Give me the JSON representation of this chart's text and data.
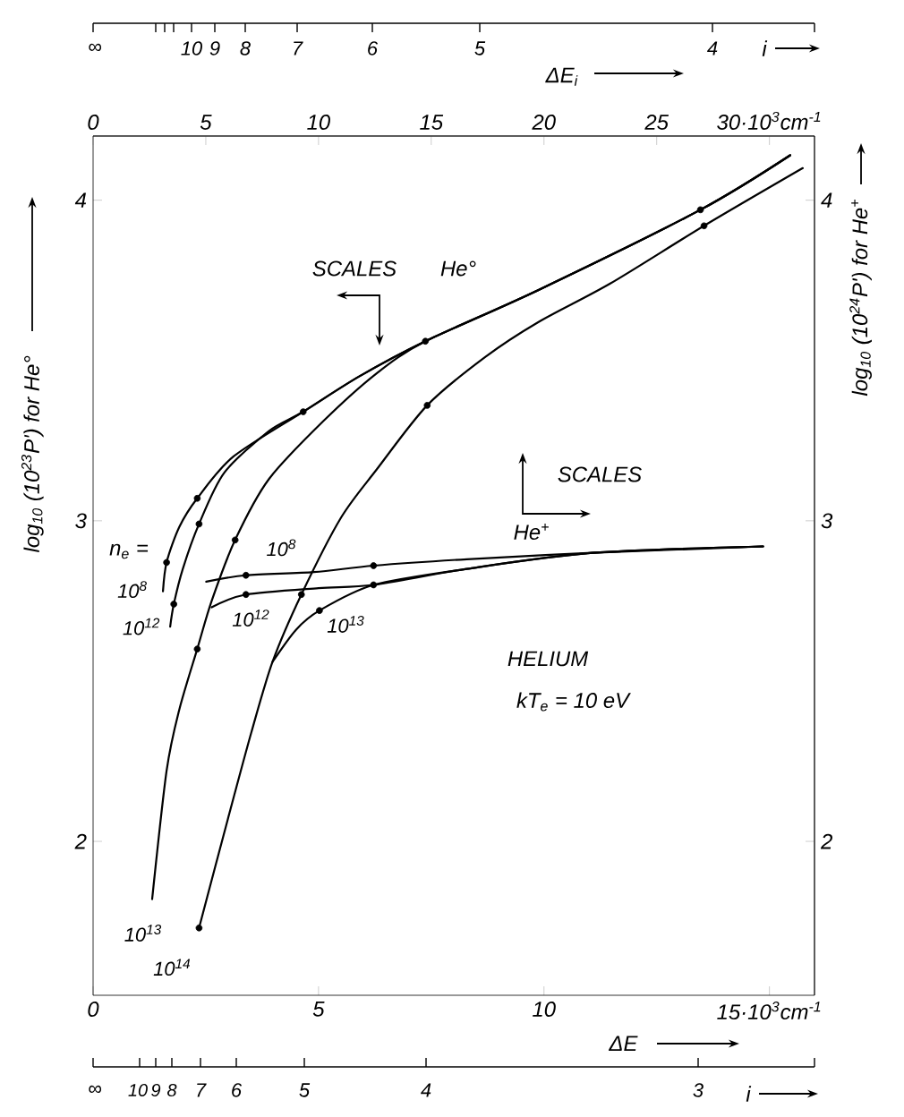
{
  "chart_data": {
    "type": "line",
    "line_style": "solid",
    "xlabel": "ΔE",
    "x2label": "ΔE$_{i}$",
    "ylabel": "log$_{10}$ (10$^{23}$P') for He°",
    "y2label": "log$_{10}$ (10$^{24}$P') for He$^{+}$",
    "xlim": [
      0,
      16
    ],
    "xticks": [
      0,
      5,
      10,
      {
        "value": 15,
        "label": "15·10$^{3}$cm$^{-1}$"
      }
    ],
    "x2lim": [
      0,
      32
    ],
    "x2ticks": [
      0,
      5,
      10,
      15,
      20,
      25,
      {
        "value": 30,
        "label": "30·10$^{3}$cm$^{-1}$"
      }
    ],
    "ylim": [
      1.52,
      4.2
    ],
    "yticks": [
      2,
      3,
      4
    ],
    "y2lim": [
      1.52,
      4.2
    ],
    "y2ticks": [
      2,
      3,
      4
    ],
    "annotations": [
      "SCALES",
      "He°",
      "SCALES",
      "He$^{+}$",
      "HELIUM",
      "kT$_{e}$ = 10 eV",
      "n$_{e}$ =",
      "∞",
      "10",
      "9",
      "8",
      "7",
      "6",
      "5",
      "4",
      "i",
      "∞",
      "10",
      "9",
      "8",
      "7",
      "6",
      "5",
      "4",
      "3",
      "i"
    ],
    "series": [
      {
        "name": "10$^{8}$",
        "color": "#000000",
        "x": [
          1.55,
          1.63,
          1.91,
          2.31,
          3.11,
          4.66,
          5.9,
          7.37,
          9.88,
          13.47,
          15.46
        ],
        "values": [
          2.78,
          2.87,
          2.98,
          3.07,
          3.2,
          3.34,
          3.45,
          3.56,
          3.72,
          3.97,
          4.14
        ]
      },
      {
        "name": "10$^{12}$",
        "color": "#000000",
        "x": [
          1.71,
          1.79,
          1.99,
          2.35,
          2.91,
          3.9,
          4.66,
          5.9,
          7.37,
          9.88,
          13.47,
          15.46
        ],
        "values": [
          2.67,
          2.74,
          2.85,
          2.99,
          3.15,
          3.28,
          3.34,
          3.45,
          3.56,
          3.72,
          3.97,
          4.14
        ]
      },
      {
        "name": "10$^{13}$",
        "color": "#000000",
        "x": [
          1.31,
          1.63,
          1.91,
          2.31,
          2.63,
          3.15,
          3.9,
          5.1,
          6.29,
          7.37,
          9.88,
          13.47,
          15.46
        ],
        "values": [
          1.82,
          2.22,
          2.41,
          2.6,
          2.75,
          2.94,
          3.13,
          3.31,
          3.46,
          3.56,
          3.72,
          3.97,
          4.14
        ]
      },
      {
        "name": "10$^{14}$",
        "color": "#000000",
        "x": [
          2.35,
          2.99,
          3.51,
          3.98,
          4.62,
          5.5,
          6.29,
          7.41,
          8.69,
          9.88,
          11.47,
          13.55,
          15.74
        ],
        "values": [
          1.73,
          2.07,
          2.34,
          2.56,
          2.77,
          3.01,
          3.16,
          3.36,
          3.51,
          3.62,
          3.74,
          3.92,
          4.1
        ]
      },
      {
        "name": "10$^{8}$",
        "color": "#000000",
        "axis": "y2",
        "x": [
          2.51,
          3.39,
          4.9,
          6.22,
          8.29,
          11.08,
          14.86
        ],
        "values": [
          2.81,
          2.83,
          2.84,
          2.86,
          2.88,
          2.9,
          2.92
        ]
      },
      {
        "name": "10$^{12}$",
        "color": "#000000",
        "axis": "y2",
        "x": [
          2.63,
          3.39,
          5.0,
          6.22,
          8.29,
          11.08,
          14.86
        ],
        "values": [
          2.73,
          2.77,
          2.79,
          2.8,
          2.85,
          2.9,
          2.92
        ]
      },
      {
        "name": "10$^{13}$",
        "color": "#000000",
        "axis": "y2",
        "x": [
          3.98,
          4.5,
          5.02,
          6.22,
          8.29,
          11.08,
          14.86
        ],
        "values": [
          2.56,
          2.66,
          2.72,
          2.8,
          2.85,
          2.9,
          2.92
        ]
      },
      {
        "type": "scatter",
        "marker": "circle",
        "color": "#000000",
        "x": [
          1.63,
          2.31,
          4.66,
          7.37,
          13.47,
          1.79,
          2.35,
          2.31,
          3.15,
          2.35,
          4.62,
          7.41,
          13.55
        ],
        "values": [
          2.87,
          3.07,
          3.34,
          3.56,
          3.97,
          2.74,
          2.99,
          2.6,
          2.94,
          1.73,
          2.77,
          3.36,
          3.92
        ]
      },
      {
        "type": "scatter",
        "marker": "circle",
        "color": "#000000",
        "axis": "y2",
        "x": [
          3.39,
          6.22,
          3.39,
          5.02,
          6.22
        ],
        "values": [
          2.83,
          2.86,
          2.77,
          2.72,
          2.8
        ]
      }
    ]
  }
}
